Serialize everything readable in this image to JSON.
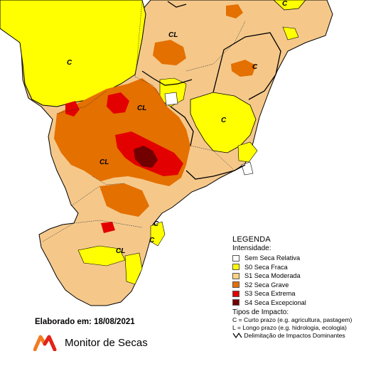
{
  "map": {
    "region_labels": [
      "C",
      "CL",
      "C",
      "CL",
      "C",
      "CL",
      "C",
      "C",
      "CL",
      "C"
    ],
    "colors": {
      "none": "#ffffff",
      "s0": "#ffff00",
      "s1": "#fcd37f",
      "s2": "#e47000",
      "s3": "#e20000",
      "s4": "#730000",
      "s1_light": "#f5c88a"
    }
  },
  "legend": {
    "title": "LEGENDA",
    "subtitle": "Intensidade:",
    "items": [
      {
        "label": "Sem Seca Relativa",
        "color": "#ffffff"
      },
      {
        "label": "S0 Seca Fraca",
        "color": "#ffff00"
      },
      {
        "label": "S1 Seca Moderada",
        "color": "#fcd37f"
      },
      {
        "label": "S2 Seca Grave",
        "color": "#e47000"
      },
      {
        "label": "S3 Seca Extrema",
        "color": "#e20000"
      },
      {
        "label": "S4 Seca Excepcional",
        "color": "#730000"
      }
    ],
    "impact_title": "Tipos de Impacto:",
    "impact_lines": [
      "C = Curto prazo (e.g. agricultura, pastagem)",
      "L = Longo prazo (e.g. hidrologia, ecologia)"
    ],
    "delimitation": "Delimitação de Impactos Dominantes"
  },
  "footer": {
    "date": "Elaborado em: 18/08/2021",
    "brand": "Monitor de Secas"
  }
}
